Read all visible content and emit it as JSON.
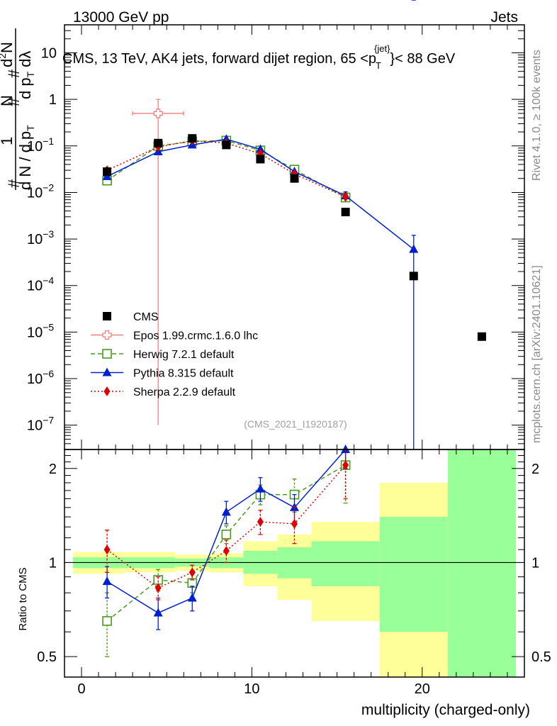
{
  "header": {
    "left": "13000 GeV pp",
    "right": "Jets"
  },
  "side": {
    "rivet": "Rivet 4.1.0, ≥ 100k events",
    "mcplots": "mcplots.cern.ch [arXiv:2401.10621]"
  },
  "chart_data": {
    "type": "scatter",
    "title": {
      "main": "CMS, 13 TeV, AK4 jets, forward dijet region, 65 <p",
      "sup": "{jet}",
      "sub": "T",
      "tail": "}< 88 GeV"
    },
    "analysis_id": "(CMS_2021_I1920187)",
    "xlabel": "multiplicity (charged-only)",
    "ylabel": {
      "hash1": "#",
      "one": "1",
      "num": "N",
      "dN": "d N / d p",
      "dN_sub": "T",
      "hash2": "#",
      "hash3": "#",
      "d2N_num": "d",
      "d2N_sup": "2",
      "d2N_N": "N",
      "dpdl": "d p",
      "dpdl_sub": "T",
      "dpdl_tail": "dλ"
    },
    "ratio_ylabel": "Ratio to CMS",
    "xlim": [
      -1,
      26
    ],
    "ylim": [
      3e-08,
      40
    ],
    "ratio_ylim": [
      0.43,
      2.3
    ],
    "x_ticks": [
      {
        "v": 0,
        "label": "0"
      },
      {
        "v": 10,
        "label": "10"
      },
      {
        "v": 20,
        "label": "20"
      }
    ],
    "y_ticks": [
      {
        "v": 1e-07,
        "base": "10",
        "exp": "−7"
      },
      {
        "v": 1e-06,
        "base": "10",
        "exp": "−6"
      },
      {
        "v": 1e-05,
        "base": "10",
        "exp": "−5"
      },
      {
        "v": 0.0001,
        "base": "10",
        "exp": "−4"
      },
      {
        "v": 0.001,
        "base": "10",
        "exp": "−3"
      },
      {
        "v": 0.01,
        "base": "10",
        "exp": "−2"
      },
      {
        "v": 0.1,
        "base": "10",
        "exp": "−1"
      },
      {
        "v": 1,
        "base": "1",
        "exp": ""
      },
      {
        "v": 10,
        "base": "10",
        "exp": ""
      }
    ],
    "ratio_ticks": [
      {
        "v": 0.5,
        "label": "0.5"
      },
      {
        "v": 1,
        "label": "1"
      },
      {
        "v": 2,
        "label": "2"
      }
    ],
    "cms": {
      "name": "CMS",
      "color": "#000000",
      "x": [
        1.5,
        4.5,
        6.5,
        8.5,
        10.5,
        12.5,
        15.5,
        19.5,
        23.5
      ],
      "y": [
        0.028,
        0.115,
        0.145,
        0.105,
        0.052,
        0.02,
        0.0038,
        0.00016,
        8e-06
      ]
    },
    "bands": [
      {
        "x0": -0.5,
        "x1": 2.5,
        "y_lo": 0.92,
        "y_hi": 1.08,
        "g_lo": 0.96,
        "g_hi": 1.04
      },
      {
        "x0": 2.5,
        "x1": 5.5,
        "y_lo": 0.93,
        "y_hi": 1.08,
        "g_lo": 0.96,
        "g_hi": 1.04
      },
      {
        "x0": 5.5,
        "x1": 7.5,
        "y_lo": 0.94,
        "y_hi": 1.06,
        "g_lo": 0.97,
        "g_hi": 1.03
      },
      {
        "x0": 7.5,
        "x1": 9.5,
        "y_lo": 0.93,
        "y_hi": 1.07,
        "g_lo": 0.96,
        "g_hi": 1.04
      },
      {
        "x0": 9.5,
        "x1": 11.5,
        "y_lo": 0.84,
        "y_hi": 1.17,
        "g_lo": 0.92,
        "g_hi": 1.09
      },
      {
        "x0": 11.5,
        "x1": 13.5,
        "y_lo": 0.76,
        "y_hi": 1.23,
        "g_lo": 0.89,
        "g_hi": 1.12
      },
      {
        "x0": 13.5,
        "x1": 17.5,
        "y_lo": 0.65,
        "y_hi": 1.35,
        "g_lo": 0.84,
        "g_hi": 1.17
      },
      {
        "x0": 17.5,
        "x1": 21.5,
        "y_lo": 0.43,
        "y_hi": 1.8,
        "g_lo": 0.6,
        "g_hi": 1.4
      },
      {
        "x0": 21.5,
        "x1": 25.5,
        "y_lo": 0.43,
        "y_hi": 2.3,
        "g_lo": 0.43,
        "g_hi": 2.3
      }
    ],
    "series": [
      {
        "name": "Epos 1.99.crmc.1.6.0 lhc",
        "color": "#f08080",
        "dash": "",
        "marker": "open-cross",
        "x": [
          4.5
        ],
        "y": [
          0.5
        ],
        "err_lo": [
          0.4999999
        ],
        "err_hi": [
          0.5
        ],
        "xerr": 1.5,
        "ratio": [],
        "ratio_err": []
      },
      {
        "name": "Herwig 7.2.1 default",
        "color": "#4a9a1a",
        "dash": "6,4",
        "marker": "open-square",
        "x": [
          1.5,
          4.5,
          6.5,
          8.5,
          10.5,
          12.5,
          15.5
        ],
        "y": [
          0.018,
          0.1,
          0.125,
          0.13,
          0.08,
          0.031,
          0.0078
        ],
        "err_lo": [
          0,
          0,
          0,
          0,
          0,
          0,
          0.0015
        ],
        "err_hi": [
          0,
          0,
          0,
          0,
          0,
          0,
          0.0015
        ],
        "ratio": [
          0.65,
          0.88,
          0.86,
          1.23,
          1.65,
          1.65,
          2.05
        ],
        "ratio_err": [
          0.15,
          0.07,
          0.06,
          0.08,
          0.12,
          0.2,
          0.5
        ]
      },
      {
        "name": "Pythia 8.315 default",
        "color": "#0020d0",
        "dash": "",
        "marker": "triangle",
        "x": [
          1.5,
          4.5,
          6.5,
          8.5,
          10.5,
          12.5,
          15.5,
          19.5
        ],
        "y": [
          0.022,
          0.075,
          0.105,
          0.14,
          0.085,
          0.028,
          0.0085,
          0.0006
        ],
        "err_lo": [
          0,
          0,
          0,
          0,
          0,
          0,
          0.0018,
          0.0005999999
        ],
        "err_hi": [
          0,
          0,
          0,
          0,
          0,
          0,
          0.0018,
          0.0006
        ],
        "ratio": [
          0.87,
          0.69,
          0.77,
          1.45,
          1.72,
          1.5,
          2.3
        ],
        "ratio_err": [
          0.1,
          0.08,
          0.07,
          0.12,
          0.15,
          0.15,
          0.3
        ]
      },
      {
        "name": "Sherpa 2.2.9 default",
        "color": "#e00000",
        "dash": "2,3",
        "marker": "diamond",
        "x": [
          1.5,
          4.5,
          6.5,
          8.5,
          10.5,
          12.5,
          15.5
        ],
        "y": [
          0.03,
          0.095,
          0.13,
          0.115,
          0.068,
          0.025,
          0.008
        ],
        "err_lo": [
          0,
          0,
          0,
          0,
          0,
          0,
          0.0015
        ],
        "err_hi": [
          0,
          0,
          0,
          0,
          0,
          0,
          0.0015
        ],
        "ratio": [
          1.1,
          0.83,
          0.93,
          1.09,
          1.35,
          1.33,
          2.05
        ],
        "ratio_err": [
          0.17,
          0.07,
          0.05,
          0.09,
          0.12,
          0.18,
          0.45
        ]
      }
    ]
  }
}
